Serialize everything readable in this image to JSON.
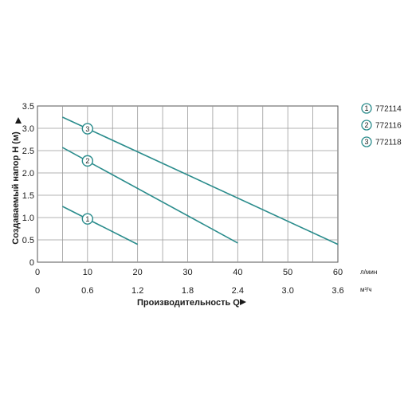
{
  "chart_data": {
    "type": "line",
    "xlabel": "Производительность Q",
    "ylabel": "Создаваемый напор H (м)",
    "x_unit_primary": "л/мин",
    "x_unit_secondary": "м³/ч",
    "x_ticks_primary": [
      0,
      10,
      20,
      30,
      40,
      50,
      60
    ],
    "x_ticks_secondary": [
      "0",
      "0.6",
      "1.2",
      "1.8",
      "2.4",
      "3.0",
      "3.6"
    ],
    "y_ticks": [
      "0",
      "0.5",
      "1.0",
      "1.5",
      "2.0",
      "2.5",
      "3.0",
      "3.5"
    ],
    "xlim": [
      0,
      60
    ],
    "ylim": [
      0,
      3.5
    ],
    "grid": true,
    "legend_position": "right",
    "line_color": "#2a8c8c",
    "series": [
      {
        "name": "772114",
        "marker": "1",
        "x": [
          5,
          20
        ],
        "y": [
          1.25,
          0.4
        ],
        "marker_at": [
          10,
          0.97
        ]
      },
      {
        "name": "772116",
        "marker": "2",
        "x": [
          5,
          40
        ],
        "y": [
          2.57,
          0.43
        ],
        "marker_at": [
          10,
          2.27
        ]
      },
      {
        "name": "772118",
        "marker": "3",
        "x": [
          5,
          60
        ],
        "y": [
          3.25,
          0.4
        ],
        "marker_at": [
          10,
          2.99
        ]
      }
    ]
  }
}
